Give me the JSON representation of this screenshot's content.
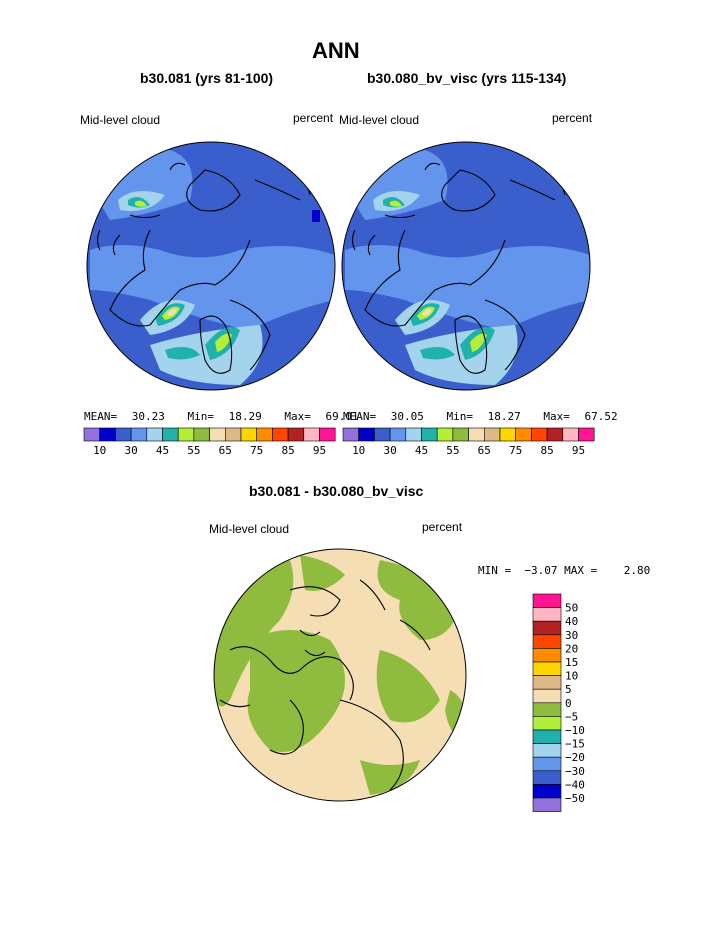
{
  "page": {
    "title": "ANN",
    "panel_left_title": "b30.081 (yrs 81-100)",
    "panel_right_title": "b30.080_bv_visc (yrs 115-134)",
    "diff_title": "b30.081 - b30.080_bv_visc"
  },
  "chart_data": [
    {
      "type": "heatmap",
      "projection": "north-polar-stereographic",
      "variable_label": "Mid-level cloud",
      "unit_label": "percent",
      "stats": {
        "mean_label": "MEAN=",
        "mean": "30.23",
        "min_label": "Min=",
        "min": "18.29",
        "max_label": "Max=",
        "max": "69.01"
      },
      "levels": [
        10,
        20,
        25,
        30,
        35,
        40,
        45,
        50,
        55,
        60,
        65,
        70,
        75,
        80,
        85,
        90,
        95
      ],
      "colorbar_tick_labels": [
        "10",
        "30",
        "45",
        "55",
        "65",
        "75",
        "85",
        "95"
      ],
      "colorbar_colors": [
        "#9370db",
        "#0000cd",
        "#3a5fcd",
        "#6495ed",
        "#a4d3ee",
        "#20b2aa",
        "#b3ee3a",
        "#8fbc3f",
        "#f5deb3",
        "#deb887",
        "#ffd700",
        "#ff8c00",
        "#ff4500",
        "#b22222",
        "#ffb6c1",
        "#ff1493"
      ]
    },
    {
      "type": "heatmap",
      "projection": "north-polar-stereographic",
      "variable_label": "Mid-level cloud",
      "unit_label": "percent",
      "stats": {
        "mean_label": "MEAN=",
        "mean": "30.05",
        "min_label": "Min=",
        "min": "18.27",
        "max_label": "Max=",
        "max": "67.52"
      },
      "levels": [
        10,
        20,
        25,
        30,
        35,
        40,
        45,
        50,
        55,
        60,
        65,
        70,
        75,
        80,
        85,
        90,
        95
      ],
      "colorbar_tick_labels": [
        "10",
        "30",
        "45",
        "55",
        "65",
        "75",
        "85",
        "95"
      ],
      "colorbar_colors": [
        "#9370db",
        "#0000cd",
        "#3a5fcd",
        "#6495ed",
        "#a4d3ee",
        "#20b2aa",
        "#b3ee3a",
        "#8fbc3f",
        "#f5deb3",
        "#deb887",
        "#ffd700",
        "#ff8c00",
        "#ff4500",
        "#b22222",
        "#ffb6c1",
        "#ff1493"
      ]
    },
    {
      "type": "heatmap",
      "projection": "north-polar-stereographic",
      "variable_label": "Mid-level cloud",
      "unit_label": "percent",
      "minmax_text": "MIN =  −3.07 MAX =    2.80",
      "min": -3.07,
      "max": 2.8,
      "colorbar_tick_labels": [
        "50",
        "40",
        "30",
        "20",
        "15",
        "10",
        "5",
        "0",
        "−5",
        "−10",
        "−15",
        "−20",
        "−30",
        "−40",
        "−50"
      ],
      "colorbar_colors": [
        "#ff1493",
        "#ffb6c1",
        "#b22222",
        "#ff4500",
        "#ff8c00",
        "#ffd700",
        "#deb887",
        "#f5deb3",
        "#8fbc3f",
        "#b3ee3a",
        "#20b2aa",
        "#a4d3ee",
        "#6495ed",
        "#3a5fcd",
        "#0000cd",
        "#9370db"
      ]
    }
  ]
}
